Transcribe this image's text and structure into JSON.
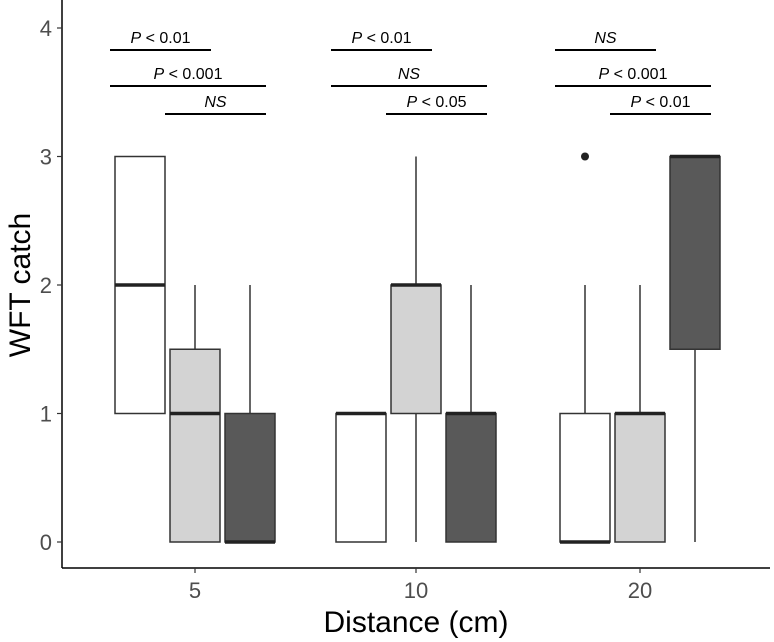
{
  "chart_data": {
    "type": "boxplot",
    "title": "",
    "xlabel": "Distance (cm)",
    "ylabel": "WFT catch",
    "ylim": [
      0,
      4
    ],
    "yticks": [
      "0",
      "1",
      "2",
      "3",
      "4"
    ],
    "categories": [
      "5",
      "10",
      "20"
    ],
    "series_colors": [
      "#ffffff",
      "#d3d3d3",
      "#595959"
    ],
    "groups": [
      {
        "category": "5",
        "boxes": [
          {
            "min": 1,
            "q1": 1,
            "median": 2,
            "q3": 3,
            "max": 3,
            "outliers": []
          },
          {
            "min": 0,
            "q1": 0,
            "median": 1,
            "q3": 1.5,
            "max": 2,
            "outliers": []
          },
          {
            "min": 0,
            "q1": 0,
            "median": 0,
            "q3": 1,
            "max": 2,
            "outliers": []
          }
        ]
      },
      {
        "category": "10",
        "boxes": [
          {
            "min": 0,
            "q1": 0,
            "median": 1,
            "q3": 1,
            "max": 1,
            "outliers": []
          },
          {
            "min": 0,
            "q1": 1,
            "median": 2,
            "q3": 2,
            "max": 3,
            "outliers": []
          },
          {
            "min": 0,
            "q1": 0,
            "median": 1,
            "q3": 1,
            "max": 2,
            "outliers": []
          }
        ]
      },
      {
        "category": "20",
        "boxes": [
          {
            "min": 0,
            "q1": 0,
            "median": 0,
            "q3": 1,
            "max": 2,
            "outliers": [
              3
            ]
          },
          {
            "min": 0,
            "q1": 0,
            "median": 1,
            "q3": 1,
            "max": 2,
            "outliers": []
          },
          {
            "min": 0,
            "q1": 1.5,
            "median": 3,
            "q3": 3,
            "max": 3,
            "outliers": []
          }
        ]
      }
    ],
    "comparisons": [
      {
        "category": "5",
        "pair": [
          0,
          1
        ],
        "label": "P < 0.01"
      },
      {
        "category": "5",
        "pair": [
          0,
          2
        ],
        "label": "P < 0.001"
      },
      {
        "category": "5",
        "pair": [
          1,
          2
        ],
        "label": "NS"
      },
      {
        "category": "10",
        "pair": [
          0,
          1
        ],
        "label": "P < 0.01"
      },
      {
        "category": "10",
        "pair": [
          0,
          2
        ],
        "label": "NS"
      },
      {
        "category": "10",
        "pair": [
          1,
          2
        ],
        "label": "P < 0.05"
      },
      {
        "category": "20",
        "pair": [
          0,
          1
        ],
        "label": "NS"
      },
      {
        "category": "20",
        "pair": [
          0,
          2
        ],
        "label": "P < 0.001"
      },
      {
        "category": "20",
        "pair": [
          1,
          2
        ],
        "label": "P < 0.01"
      }
    ]
  }
}
